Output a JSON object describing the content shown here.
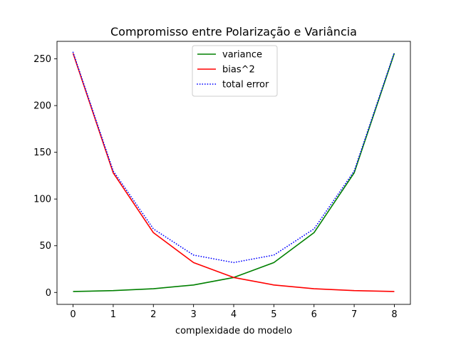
{
  "chart_data": {
    "type": "line",
    "title": "Compromisso entre Polarização e Variância",
    "xlabel": "complexidade do modelo",
    "ylabel": "",
    "x": [
      0,
      1,
      2,
      3,
      4,
      5,
      6,
      7,
      8
    ],
    "xlim": [
      -0.4,
      8.4
    ],
    "ylim": [
      -12.75,
      268.75
    ],
    "xticks": [
      0,
      1,
      2,
      3,
      4,
      5,
      6,
      7,
      8
    ],
    "yticks": [
      0,
      50,
      100,
      150,
      200,
      250
    ],
    "grid": false,
    "legend_position": "upper center",
    "series": [
      {
        "name": "variance",
        "color": "#008000",
        "style": "solid",
        "values": [
          1,
          2,
          4,
          8,
          16,
          32,
          64,
          128,
          256
        ]
      },
      {
        "name": "bias^2",
        "color": "#ff0000",
        "style": "solid",
        "values": [
          256,
          128,
          64,
          32,
          16,
          8,
          4,
          2,
          1
        ]
      },
      {
        "name": "total error",
        "color": "#0000ff",
        "style": "dotted",
        "values": [
          257,
          130,
          68,
          40,
          32,
          40,
          68,
          130,
          257
        ]
      }
    ]
  }
}
